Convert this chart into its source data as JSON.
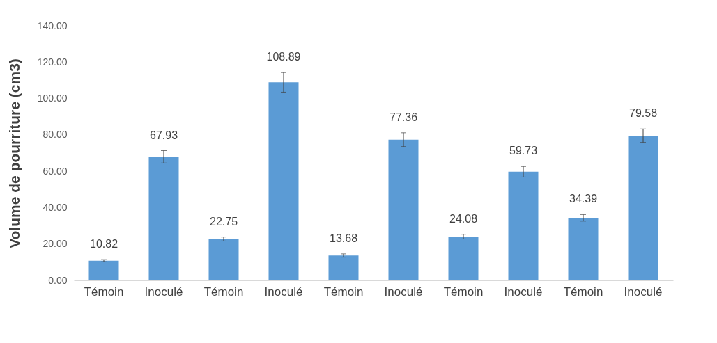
{
  "chart_data": {
    "type": "bar",
    "ylabel": "Volume de pourriture (cm3)",
    "categories": [
      "Témoin",
      "Inoculé",
      "Témoin",
      "Inoculé",
      "Témoin",
      "Inoculé",
      "Témoin",
      "Inoculé",
      "Témoin",
      "Inoculé"
    ],
    "values": [
      10.82,
      67.93,
      22.75,
      108.89,
      13.68,
      77.36,
      24.08,
      59.73,
      34.39,
      79.58
    ],
    "errors": [
      0.6,
      3.4,
      1.1,
      5.4,
      0.9,
      3.8,
      1.3,
      2.9,
      1.8,
      3.7
    ],
    "color": "#5b9bd5",
    "ylim": [
      0,
      140
    ],
    "yticks": [
      {
        "value": 0,
        "label": "0.00"
      },
      {
        "value": 20,
        "label": "20.00"
      },
      {
        "value": 40,
        "label": "40.00"
      },
      {
        "value": 60,
        "label": "60.00"
      },
      {
        "value": 80,
        "label": "80.00"
      },
      {
        "value": 100,
        "label": "100.00"
      },
      {
        "value": 120,
        "label": "120.00"
      },
      {
        "value": 140,
        "label": "140.00"
      }
    ],
    "data_labels": true,
    "grid": false
  }
}
